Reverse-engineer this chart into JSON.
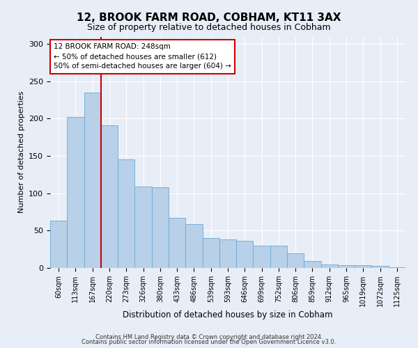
{
  "title": "12, BROOK FARM ROAD, COBHAM, KT11 3AX",
  "subtitle": "Size of property relative to detached houses in Cobham",
  "xlabel": "Distribution of detached houses by size in Cobham",
  "ylabel": "Number of detached properties",
  "categories": [
    "60sqm",
    "113sqm",
    "167sqm",
    "220sqm",
    "273sqm",
    "326sqm",
    "380sqm",
    "433sqm",
    "486sqm",
    "539sqm",
    "593sqm",
    "646sqm",
    "699sqm",
    "752sqm",
    "806sqm",
    "859sqm",
    "912sqm",
    "965sqm",
    "1019sqm",
    "1072sqm",
    "1125sqm"
  ],
  "values": [
    63,
    202,
    235,
    191,
    145,
    109,
    108,
    67,
    59,
    40,
    38,
    36,
    30,
    30,
    20,
    9,
    5,
    4,
    4,
    3,
    1
  ],
  "bar_color": "#b8d0e8",
  "bar_edge_color": "#6aaad4",
  "vline_index": 3,
  "vline_color": "#cc0000",
  "annotation_text": "12 BROOK FARM ROAD: 248sqm\n← 50% of detached houses are smaller (612)\n50% of semi-detached houses are larger (604) →",
  "annotation_box_facecolor": "white",
  "annotation_box_edgecolor": "#cc0000",
  "ylim": [
    0,
    310
  ],
  "yticks": [
    0,
    50,
    100,
    150,
    200,
    250,
    300
  ],
  "footer1": "Contains HM Land Registry data © Crown copyright and database right 2024.",
  "footer2": "Contains public sector information licensed under the Open Government Licence v3.0.",
  "bg_color": "#e8eef7",
  "plot_bg_color": "#e8eef7"
}
